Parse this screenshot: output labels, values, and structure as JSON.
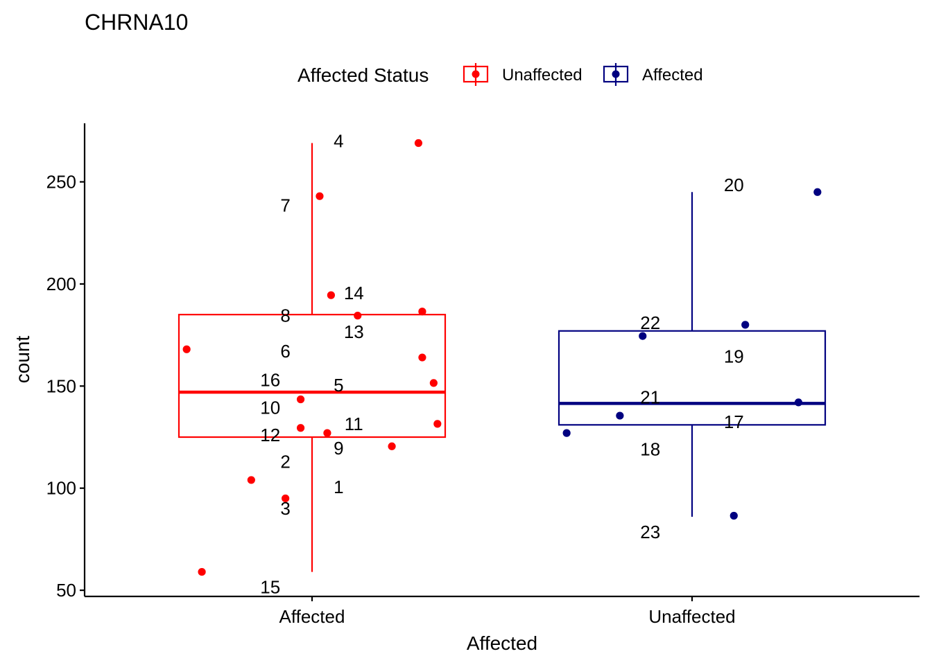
{
  "chart_data": {
    "type": "boxplot",
    "title": "CHRNA10",
    "xlabel": "Affected",
    "ylabel": "count",
    "categories": [
      "Affected",
      "Unaffected"
    ],
    "yticks": [
      50,
      100,
      150,
      200,
      250
    ],
    "ylim": [
      48,
      278
    ],
    "grid": false,
    "legend": {
      "title": "Affected Status",
      "position": "top",
      "entries": [
        {
          "label": "Unaffected",
          "color": "#ff0000"
        },
        {
          "label": "Affected",
          "color": "#000080"
        }
      ]
    },
    "boxes": [
      {
        "category": "Affected",
        "color": "#ff0000",
        "whisker_low": 59,
        "q1": 125,
        "median": 147,
        "q3": 185,
        "whisker_high": 269
      },
      {
        "category": "Unaffected",
        "color": "#000080",
        "whisker_low": 86,
        "q1": 131,
        "median": 141.5,
        "q3": 177,
        "whisker_high": 245
      }
    ],
    "points": [
      {
        "category": "Affected",
        "jitter": 0.28,
        "y": 269,
        "label": "4"
      },
      {
        "category": "Affected",
        "jitter": 0.02,
        "y": 243,
        "label": "7"
      },
      {
        "category": "Affected",
        "jitter": 0.05,
        "y": 194.5,
        "label": "14"
      },
      {
        "category": "Affected",
        "jitter": 0.12,
        "y": 184.5,
        "label": "8"
      },
      {
        "category": "Affected",
        "jitter": 0.29,
        "y": 186.5,
        "label": "13"
      },
      {
        "category": "Affected",
        "jitter": -0.33,
        "y": 168,
        "label": "6"
      },
      {
        "category": "Affected",
        "jitter": 0.29,
        "y": 164,
        "label": "16"
      },
      {
        "category": "Affected",
        "jitter": 0.32,
        "y": 151.5,
        "label": "5"
      },
      {
        "category": "Affected",
        "jitter": -0.03,
        "y": 143.5,
        "label": "10"
      },
      {
        "category": "Affected",
        "jitter": 0.33,
        "y": 131.5,
        "label": "11"
      },
      {
        "category": "Affected",
        "jitter": -0.03,
        "y": 129.5,
        "label": "12"
      },
      {
        "category": "Affected",
        "jitter": 0.04,
        "y": 127,
        "label": "9"
      },
      {
        "category": "Affected",
        "jitter": 0.21,
        "y": 120.5,
        "label": "2"
      },
      {
        "category": "Affected",
        "jitter": -0.16,
        "y": 104,
        "label": "1"
      },
      {
        "category": "Affected",
        "jitter": -0.07,
        "y": 95,
        "label": "3"
      },
      {
        "category": "Affected",
        "jitter": -0.29,
        "y": 59,
        "label": "15"
      },
      {
        "category": "Unaffected",
        "jitter": 0.33,
        "y": 245,
        "label": "20"
      },
      {
        "category": "Unaffected",
        "jitter": 0.14,
        "y": 180,
        "label": "22"
      },
      {
        "category": "Unaffected",
        "jitter": -0.13,
        "y": 174.5,
        "label": "19"
      },
      {
        "category": "Unaffected",
        "jitter": 0.28,
        "y": 142,
        "label": "21"
      },
      {
        "category": "Unaffected",
        "jitter": -0.19,
        "y": 135.5,
        "label": "17"
      },
      {
        "category": "Unaffected",
        "jitter": -0.33,
        "y": 127,
        "label": "18"
      },
      {
        "category": "Unaffected",
        "jitter": 0.11,
        "y": 86.5,
        "label": "23"
      }
    ],
    "labels": [
      {
        "text": "4",
        "category": "Affected",
        "jitter": 0.07,
        "y": 270
      },
      {
        "text": "7",
        "category": "Affected",
        "jitter": -0.07,
        "y": 238.5
      },
      {
        "text": "14",
        "category": "Affected",
        "jitter": 0.11,
        "y": 195.5
      },
      {
        "text": "8",
        "category": "Affected",
        "jitter": -0.07,
        "y": 184.5
      },
      {
        "text": "13",
        "category": "Affected",
        "jitter": 0.11,
        "y": 176.5
      },
      {
        "text": "6",
        "category": "Affected",
        "jitter": -0.07,
        "y": 167
      },
      {
        "text": "16",
        "category": "Affected",
        "jitter": -0.11,
        "y": 153
      },
      {
        "text": "5",
        "category": "Affected",
        "jitter": 0.07,
        "y": 150.5
      },
      {
        "text": "10",
        "category": "Affected",
        "jitter": -0.11,
        "y": 139.5
      },
      {
        "text": "11",
        "category": "Affected",
        "jitter": 0.11,
        "y": 131.5
      },
      {
        "text": "12",
        "category": "Affected",
        "jitter": -0.11,
        "y": 126
      },
      {
        "text": "9",
        "category": "Affected",
        "jitter": 0.07,
        "y": 119.5
      },
      {
        "text": "2",
        "category": "Affected",
        "jitter": -0.07,
        "y": 113
      },
      {
        "text": "1",
        "category": "Affected",
        "jitter": 0.07,
        "y": 100.5
      },
      {
        "text": "3",
        "category": "Affected",
        "jitter": -0.07,
        "y": 90
      },
      {
        "text": "15",
        "category": "Affected",
        "jitter": -0.11,
        "y": 51.5
      },
      {
        "text": "20",
        "category": "Unaffected",
        "jitter": 0.11,
        "y": 248.5
      },
      {
        "text": "22",
        "category": "Unaffected",
        "jitter": -0.11,
        "y": 181
      },
      {
        "text": "19",
        "category": "Unaffected",
        "jitter": 0.11,
        "y": 164.5
      },
      {
        "text": "21",
        "category": "Unaffected",
        "jitter": -0.11,
        "y": 144.5
      },
      {
        "text": "17",
        "category": "Unaffected",
        "jitter": 0.11,
        "y": 132.5
      },
      {
        "text": "18",
        "category": "Unaffected",
        "jitter": -0.11,
        "y": 119
      },
      {
        "text": "23",
        "category": "Unaffected",
        "jitter": -0.11,
        "y": 78.5
      }
    ]
  }
}
